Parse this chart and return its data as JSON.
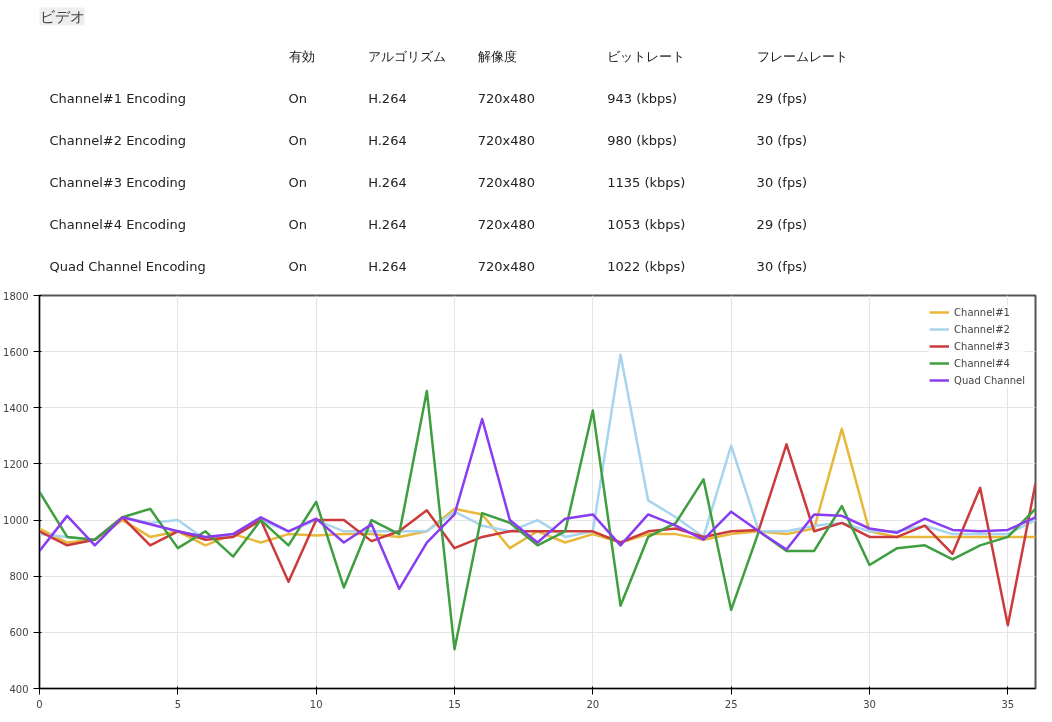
{
  "chart_data": [
    {
      "type": "other",
      "title": "ビデオ",
      "annotations": [
        "有効",
        "アルゴリズム",
        "解像度",
        "ビットレート",
        "フレームレート",
        "Channel#1 Encoding",
        "On",
        "H.264",
        "720x480",
        "943 (kbps)",
        "29 (fps)",
        "Channel#2 Encoding",
        "On",
        "H.264",
        "720x480",
        "980 (kbps)",
        "30 (fps)",
        "Channel#3 Encoding",
        "On",
        "H.264",
        "720x480",
        "1135 (kbps)",
        "30 (fps)",
        "Channel#4 Encoding",
        "On",
        "H.264",
        "720x480",
        "1053 (kbps)",
        "29 (fps)",
        "Quad Channel Encoding",
        "On",
        "H.264",
        "720x480",
        "1022 (kbps)",
        "30 (fps)"
      ]
    },
    {
      "type": "line",
      "x": [
        0,
        1,
        2,
        3,
        4,
        5,
        6,
        7,
        8,
        9,
        10,
        11,
        12,
        13,
        14,
        15,
        16,
        17,
        18,
        19,
        20,
        21,
        22,
        23,
        24,
        25,
        26,
        27,
        28,
        29,
        30,
        31,
        32,
        33,
        34,
        35,
        36
      ],
      "xlim": [
        0,
        36
      ],
      "xticks": [
        0,
        5,
        10,
        15,
        20,
        25,
        30,
        35
      ],
      "ylim": [
        400,
        1800
      ],
      "yticks": [
        400,
        600,
        800,
        1000,
        1200,
        1400,
        1600,
        1800
      ],
      "grid": true,
      "legend": "top right",
      "marker": "none",
      "line_style": "solid",
      "series": [
        {
          "name": "Channel#1",
          "color": "#e8b83a",
          "values": [
            970,
            920,
            930,
            1000,
            940,
            960,
            910,
            950,
            920,
            950,
            945,
            950,
            950,
            940,
            960,
            1040,
            1020,
            900,
            960,
            920,
            950,
            920,
            950,
            950,
            930,
            950,
            960,
            950,
            970,
            1325,
            960,
            940,
            940,
            940,
            940,
            940,
            940
          ]
        },
        {
          "name": "Channel#2",
          "color": "#a8d4ee",
          "values": [
            950,
            940,
            930,
            1010,
            990,
            1000,
            930,
            950,
            1000,
            960,
            1000,
            960,
            960,
            960,
            960,
            1030,
            980,
            960,
            1000,
            940,
            960,
            1590,
            1070,
            1010,
            940,
            1265,
            960,
            960,
            980,
            990,
            960,
            960,
            980,
            950,
            950,
            950,
            1000
          ]
        },
        {
          "name": "Channel#3",
          "color": "#cc3b3b",
          "values": [
            960,
            910,
            930,
            1010,
            910,
            960,
            930,
            940,
            1000,
            780,
            1000,
            1000,
            925,
            960,
            1035,
            900,
            940,
            960,
            960,
            960,
            960,
            920,
            960,
            970,
            940,
            960,
            965,
            1270,
            960,
            990,
            940,
            940,
            980,
            880,
            1115,
            625,
            1130
          ]
        },
        {
          "name": "Channel#4",
          "color": "#3f9e3f",
          "values": [
            1100,
            940,
            930,
            1010,
            1040,
            900,
            960,
            870,
            1000,
            910,
            1065,
            760,
            1000,
            950,
            1460,
            540,
            1025,
            990,
            910,
            960,
            1390,
            695,
            940,
            990,
            1145,
            680,
            960,
            890,
            890,
            1050,
            840,
            900,
            910,
            860,
            910,
            940,
            1040
          ]
        },
        {
          "name": "Quad Channel",
          "color": "#8a3cf0",
          "values": [
            890,
            1015,
            910,
            1010,
            985,
            960,
            940,
            950,
            1010,
            960,
            1005,
            920,
            985,
            755,
            920,
            1020,
            1360,
            1000,
            920,
            1005,
            1020,
            910,
            1020,
            980,
            930,
            1030,
            960,
            895,
            1020,
            1015,
            970,
            955,
            1005,
            965,
            960,
            965,
            1010
          ]
        }
      ]
    }
  ]
}
